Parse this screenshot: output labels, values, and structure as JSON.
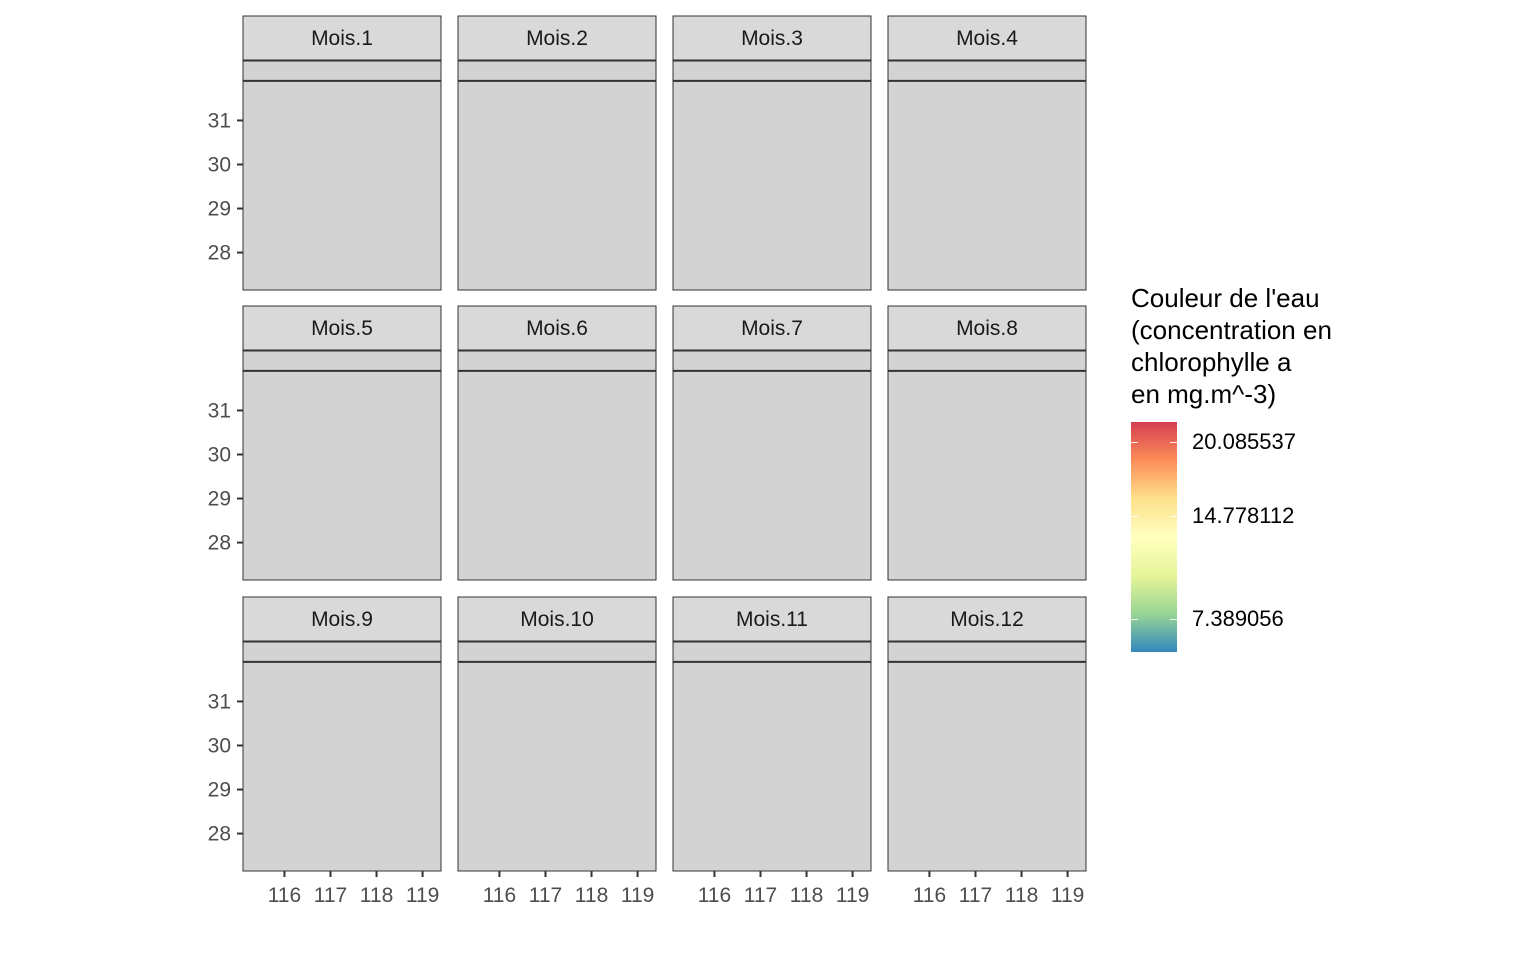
{
  "chart_data": {
    "type": "heatmap",
    "facets": [
      "Mois.1",
      "Mois.2",
      "Mois.3",
      "Mois.4",
      "Mois.5",
      "Mois.6",
      "Mois.7",
      "Mois.8",
      "Mois.9",
      "Mois.10",
      "Mois.11",
      "Mois.12"
    ],
    "facet_layout": {
      "rows": 3,
      "cols": 4
    },
    "x_ticks": [
      116,
      117,
      118,
      119
    ],
    "y_ticks": [
      31,
      30,
      29,
      28
    ],
    "xlim": [
      115.1,
      119.4
    ],
    "ylim": [
      27.15,
      32.35
    ],
    "reference_line_y": 31.9,
    "panel_fill": "#d3d3d3",
    "strip_fill": "#d9d9d9",
    "legend": {
      "title_lines": [
        "Couleur de l'eau",
        "(concentration en",
        "chlorophylle a",
        "en mg.m^-3)"
      ],
      "breaks": [
        {
          "label": "20.085537",
          "value": 20.085537
        },
        {
          "label": "14.778112",
          "value": 14.778112
        },
        {
          "label": "7.389056",
          "value": 7.389056
        }
      ],
      "range": [
        5.0,
        21.5
      ],
      "palette": [
        "#3288bd",
        "#99d594",
        "#e6f598",
        "#ffffbf",
        "#fee08b",
        "#fc8d59",
        "#d53e4f"
      ]
    }
  }
}
